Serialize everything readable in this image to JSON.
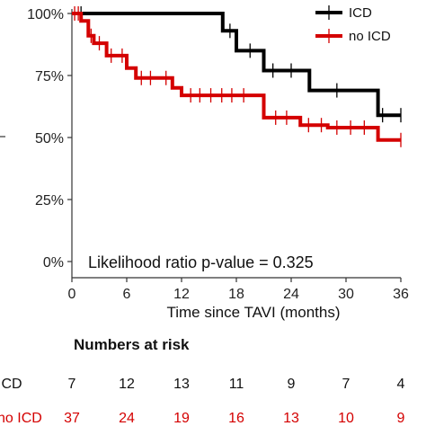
{
  "chart_data": {
    "type": "line",
    "step": true,
    "xlabel": "Time since TAVI (months)",
    "ylabel": "",
    "xlim": [
      0,
      36
    ],
    "ylim": [
      0,
      100
    ],
    "xticks": [
      "0",
      "6",
      "12",
      "18",
      "24",
      "30",
      "36"
    ],
    "yticks": [
      "0%",
      "25%",
      "50%",
      "75%",
      "100%"
    ],
    "grid": false,
    "legend": "top-right",
    "annotation": "Likelihood ratio p-value = 0.325",
    "series": [
      {
        "name": "ICD",
        "color": "#000000",
        "steps": [
          [
            0,
            100
          ],
          [
            16.5,
            100
          ],
          [
            16.5,
            93
          ],
          [
            18,
            93
          ],
          [
            18,
            85
          ],
          [
            21,
            85
          ],
          [
            21,
            77
          ],
          [
            26,
            77
          ],
          [
            26,
            69
          ],
          [
            33.5,
            69
          ],
          [
            33.5,
            59
          ],
          [
            36,
            59
          ]
        ],
        "censor": [
          [
            1,
            100
          ],
          [
            17.3,
            93
          ],
          [
            19.5,
            85
          ],
          [
            22,
            77
          ],
          [
            24,
            77
          ],
          [
            29,
            69
          ],
          [
            34,
            59
          ],
          [
            36,
            59
          ]
        ]
      },
      {
        "name": "no ICD",
        "color": "#d40000",
        "steps": [
          [
            0,
            100
          ],
          [
            1,
            100
          ],
          [
            1,
            97
          ],
          [
            1.8,
            97
          ],
          [
            1.8,
            91
          ],
          [
            2.4,
            91
          ],
          [
            2.4,
            88
          ],
          [
            3.8,
            88
          ],
          [
            3.8,
            83
          ],
          [
            6,
            83
          ],
          [
            6,
            78
          ],
          [
            7,
            78
          ],
          [
            7,
            74
          ],
          [
            11,
            74
          ],
          [
            11,
            70
          ],
          [
            12,
            70
          ],
          [
            12,
            67
          ],
          [
            21,
            67
          ],
          [
            21,
            58
          ],
          [
            25,
            58
          ],
          [
            25,
            55
          ],
          [
            28,
            55
          ],
          [
            28,
            54
          ],
          [
            33.5,
            54
          ],
          [
            33.5,
            49
          ],
          [
            36,
            49
          ]
        ],
        "censor": [
          [
            0.3,
            100
          ],
          [
            0.7,
            100
          ],
          [
            2.1,
            91
          ],
          [
            3,
            88
          ],
          [
            4.3,
            83
          ],
          [
            5.5,
            83
          ],
          [
            7.6,
            74
          ],
          [
            8.6,
            74
          ],
          [
            10.3,
            74
          ],
          [
            13,
            67
          ],
          [
            14,
            67
          ],
          [
            15.2,
            67
          ],
          [
            16.4,
            67
          ],
          [
            17.5,
            67
          ],
          [
            18.8,
            67
          ],
          [
            22.3,
            58
          ],
          [
            23.5,
            58
          ],
          [
            25.9,
            55
          ],
          [
            27.3,
            55
          ],
          [
            29,
            54
          ],
          [
            30.5,
            54
          ],
          [
            32,
            54
          ],
          [
            36,
            49
          ]
        ]
      }
    ],
    "risk_table": {
      "title": "Numbers at risk",
      "times": [
        0,
        6,
        12,
        18,
        24,
        30,
        36
      ],
      "rows": [
        {
          "name": "ICD",
          "color": "#111111",
          "values": [
            7,
            12,
            13,
            11,
            9,
            7,
            4
          ]
        },
        {
          "name": "no ICD",
          "color": "#d40000",
          "values": [
            37,
            24,
            19,
            16,
            13,
            10,
            9
          ]
        }
      ]
    }
  }
}
